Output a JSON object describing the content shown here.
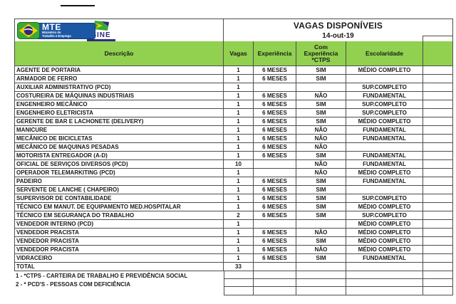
{
  "document": {
    "title": "VAGAS DISPONÍVEIS",
    "date": "14-out-19"
  },
  "logos": {
    "mte_acronym": "MTE",
    "mte_subtitle_line1": "Ministério do",
    "mte_subtitle_line2": "Trabalho e Emprego",
    "sine_label": "SINE"
  },
  "columns": {
    "descricao": "Descrição",
    "vagas": "Vagas",
    "experiencia": "Experiência",
    "com_experiencia_ctps": "Com\nExperiência\n*CTPS",
    "escolaridade": "Escolaridade",
    "extra": ""
  },
  "rows": [
    {
      "descricao": "AGENTE DE PORTARIA",
      "vagas": "1",
      "experiencia": "6 MESES",
      "ctps": "SIM",
      "escolaridade": "MÉDIO COMPLETO"
    },
    {
      "descricao": "ARMADOR DE FERRO",
      "vagas": "1",
      "experiencia": "6 MESES",
      "ctps": "SIM",
      "escolaridade": ""
    },
    {
      "descricao": "AUXILIAR ADMINISTRATIVO (PCD)",
      "vagas": "1",
      "experiencia": "",
      "ctps": "",
      "escolaridade": "SUP.COMPLETO"
    },
    {
      "descricao": "COSTUREIRA DE MÁQUINAS INDUSTRIAIS",
      "vagas": "1",
      "experiencia": "6 MESES",
      "ctps": "NÃO",
      "escolaridade": "FUNDAMENTAL"
    },
    {
      "descricao": "ENGENHEIRO MECÂNICO",
      "vagas": "1",
      "experiencia": "6 MESES",
      "ctps": "SIM",
      "escolaridade": "SUP.COMPLETO"
    },
    {
      "descricao": "ENGENHEIRO ELETRICISTA",
      "vagas": "1",
      "experiencia": "6 MESES",
      "ctps": "SIM",
      "escolaridade": "SUP.COMPLETO"
    },
    {
      "descricao": "GERENTE DE BAR E LACHONETE (DELIVERY)",
      "vagas": "1",
      "experiencia": "6 MESES",
      "ctps": "SIM",
      "escolaridade": "MÉDIO COMPLETO"
    },
    {
      "descricao": "MANICURE",
      "vagas": "1",
      "experiencia": "6 MESES",
      "ctps": "NÃO",
      "escolaridade": "FUNDAMENTAL"
    },
    {
      "descricao": "MECÂNICO DE BICICLETAS",
      "vagas": "1",
      "experiencia": "6 MESES",
      "ctps": "NÃO",
      "escolaridade": "FUNDAMENTAL"
    },
    {
      "descricao": "MECÂNICO DE MAQUINAS PESADAS",
      "vagas": "1",
      "experiencia": "6 MESES",
      "ctps": "NÃO",
      "escolaridade": ""
    },
    {
      "descricao": "MOTORISTA ENTREGADOR (A-D)",
      "vagas": "1",
      "experiencia": "6 MESES",
      "ctps": "SIM",
      "escolaridade": "FUNDAMENTAL"
    },
    {
      "descricao": "OFICIAL DE SERVIÇOS DIVERSOS (PCD)",
      "vagas": "10",
      "experiencia": "",
      "ctps": "NÃO",
      "escolaridade": "FUNDAMENTAL"
    },
    {
      "descricao": "OPERADOR TELEMARKITING (PCD)",
      "vagas": "1",
      "experiencia": "",
      "ctps": "NÃO",
      "escolaridade": "MÉDIO COMPLETO"
    },
    {
      "descricao": "PADEIRO",
      "vagas": "1",
      "experiencia": "6 MESES",
      "ctps": "SIM",
      "escolaridade": "FUNDAMENTAL"
    },
    {
      "descricao": "SERVENTE DE LANCHE ( CHAPEIRO)",
      "vagas": "1",
      "experiencia": "6 MESES",
      "ctps": "SIM",
      "escolaridade": ""
    },
    {
      "descricao": "SUPERVISOR DE CONTABILIDADE",
      "vagas": "1",
      "experiencia": "6 MESES",
      "ctps": "SIM",
      "escolaridade": "SUP.COMPLETO"
    },
    {
      "descricao": "TÉCNICO EM MANUT. DE EQUIPAMENTO MED.HOSPITALAR",
      "vagas": "1",
      "experiencia": "6 MESES",
      "ctps": "SIM",
      "escolaridade": "MÉDIO COMPLETO"
    },
    {
      "descricao": "TÉCNICO EM SEGURANÇA DO TRABALHO",
      "vagas": "2",
      "experiencia": "6 MESES",
      "ctps": "SIM",
      "escolaridade": "SUP.COMPLETO"
    },
    {
      "descricao": "VENDEDOR INTERNO (PCD)",
      "vagas": "1",
      "experiencia": "",
      "ctps": "",
      "escolaridade": "MÉDIO COMPLETO"
    },
    {
      "descricao": "VENDEDOR PRACISTA",
      "vagas": "1",
      "experiencia": "6 MESES",
      "ctps": "NÃO",
      "escolaridade": "MÉDIO COMPLETO"
    },
    {
      "descricao": "VENDEDOR PRACISTA",
      "vagas": "1",
      "experiencia": "6 MESES",
      "ctps": "SIM",
      "escolaridade": "MÉDIO COMPLETO"
    },
    {
      "descricao": "VENDEDOR PRACISTA",
      "vagas": "1",
      "experiencia": "6 MESES",
      "ctps": "NÃO",
      "escolaridade": "MÉDIO COMPLETO"
    },
    {
      "descricao": "VIDRACEIRO",
      "vagas": "1",
      "experiencia": "6 MESES",
      "ctps": "SIM",
      "escolaridade": "FUNDAMENTAL"
    }
  ],
  "total_row": {
    "descricao": "TOTAL",
    "vagas": "33",
    "experiencia": "",
    "ctps": "",
    "escolaridade": ""
  },
  "footnotes": [
    "1 - *CTPS - CARTEIRA DE TRABALHO E PREVIDÊNCIA SOCIAL",
    "2 - * PCD'S - PESSOAS COM DEFICIÊNCIA"
  ],
  "empty_trailing_rows": 3,
  "colors": {
    "header_green": "#92d050",
    "border": "#4d4d4d",
    "mte_blue": "#1c57a5",
    "sine_navy": "#2e2c86",
    "flag_green": "#3aa935",
    "flag_yellow": "#f8d000",
    "flag_blue": "#2b2b80"
  }
}
